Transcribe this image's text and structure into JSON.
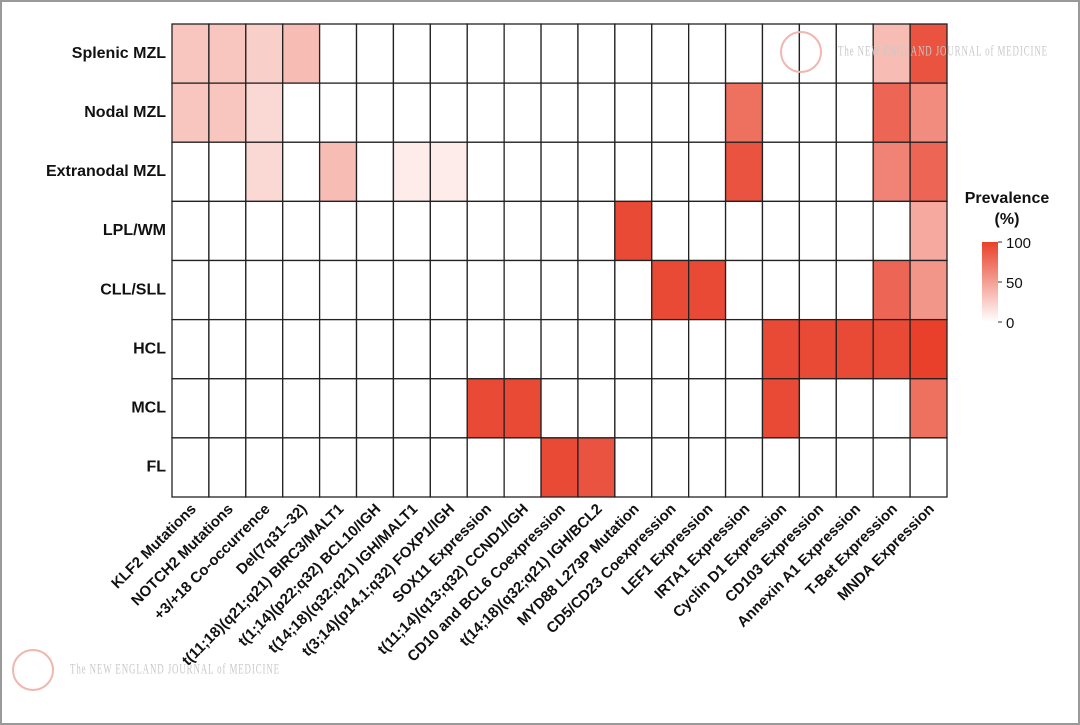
{
  "chart_data": {
    "type": "heatmap",
    "watermark": "The NEW ENGLAND JOURNAL of MEDICINE",
    "colorbar_title": "Prevalence (%)",
    "colorbar_lim": [
      0,
      100
    ],
    "colorbar_ticks": [
      0,
      50,
      100
    ],
    "color_low": "#ffffff",
    "color_high": "#e8402a",
    "rows": [
      "Splenic MZL",
      "Nodal MZL",
      "Extranodal MZL",
      "LPL/WM",
      "CLL/SLL",
      "HCL",
      "MCL",
      "FL"
    ],
    "columns": [
      "KLF2 Mutations",
      "NOTCH2 Mutations",
      "+3/+18 Co-occurrence",
      "Del(7q31–32)",
      "t(11;18)(q21;q21) BIRC3/MALT1",
      "t(1;14)(p22;q32) BCL10/IGH",
      "t(14;18)(q32;q21) IGH/MALT1",
      "t(3;14)(p14.1;q32) FOXP1/IGH",
      "SOX11 Expression",
      "t(11;14)(q13;q32) CCND1/IGH",
      "CD10 and BCL6 Coexpression",
      "t(14;18)(q32;q21) IGH/BCL2",
      "MYD88 L273P Mutation",
      "CD5/CD23 Coexpression",
      "LEF1 Expression",
      "IRTA1 Expression",
      "Cyclin D1 Expression",
      "CD103 Expression",
      "Annexin A1 Expression",
      "T-Bet Expression",
      "MNDA Expression"
    ],
    "values": [
      [
        30,
        30,
        25,
        35,
        0,
        0,
        0,
        0,
        0,
        0,
        0,
        0,
        0,
        0,
        0,
        0,
        0,
        0,
        0,
        35,
        90
      ],
      [
        30,
        30,
        20,
        0,
        0,
        0,
        0,
        0,
        0,
        0,
        0,
        0,
        0,
        0,
        0,
        75,
        0,
        0,
        0,
        80,
        60
      ],
      [
        0,
        0,
        20,
        0,
        35,
        0,
        10,
        10,
        0,
        0,
        0,
        0,
        0,
        0,
        0,
        90,
        0,
        0,
        0,
        65,
        80
      ],
      [
        0,
        0,
        0,
        0,
        0,
        0,
        0,
        0,
        0,
        0,
        0,
        0,
        95,
        0,
        0,
        0,
        0,
        0,
        0,
        0,
        45
      ],
      [
        0,
        0,
        0,
        0,
        0,
        0,
        0,
        0,
        0,
        0,
        0,
        0,
        0,
        95,
        95,
        0,
        0,
        0,
        0,
        80,
        55
      ],
      [
        0,
        0,
        0,
        0,
        0,
        0,
        0,
        0,
        0,
        0,
        0,
        0,
        0,
        0,
        0,
        0,
        95,
        95,
        95,
        95,
        100
      ],
      [
        0,
        0,
        0,
        0,
        0,
        0,
        0,
        0,
        95,
        95,
        0,
        0,
        0,
        0,
        0,
        0,
        95,
        0,
        0,
        0,
        75
      ],
      [
        0,
        0,
        0,
        0,
        0,
        0,
        0,
        0,
        0,
        0,
        95,
        90,
        0,
        0,
        0,
        0,
        0,
        0,
        0,
        0,
        0
      ]
    ]
  }
}
